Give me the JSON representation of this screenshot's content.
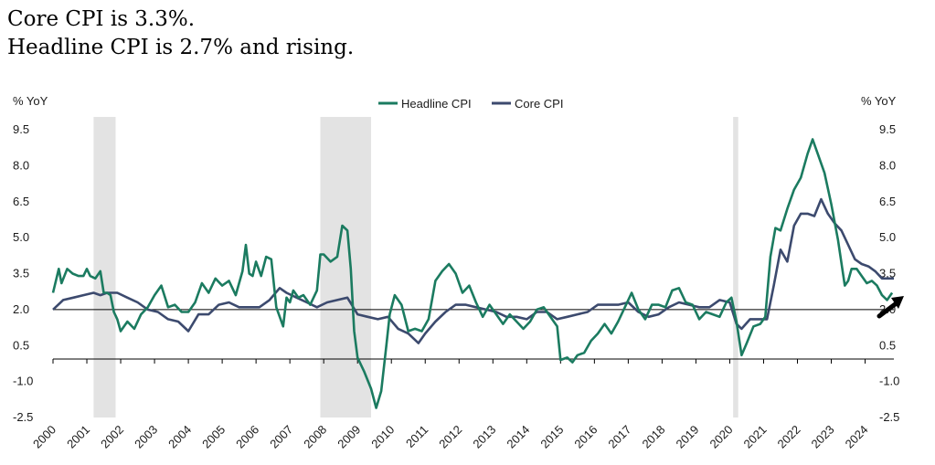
{
  "headline": {
    "line1": "Core CPI is 3.3%.",
    "line2": "Headline CPI is 2.7% and rising."
  },
  "chart_data": {
    "type": "line",
    "y_label_left": "% YoY",
    "y_label_right": "% YoY",
    "ylim": [
      -2.5,
      9.5
    ],
    "y_ticks": [
      "9.5",
      "8.0",
      "6.5",
      "5.0",
      "3.5",
      "2.0",
      "0.5",
      "-1.0",
      "-2.5"
    ],
    "x_ticks": [
      "2000",
      "2001",
      "2002",
      "2003",
      "2004",
      "2005",
      "2006",
      "2007",
      "2008",
      "2009",
      "2010",
      "2011",
      "2012",
      "2013",
      "2014",
      "2015",
      "2016",
      "2017",
      "2018",
      "2019",
      "2020",
      "2021",
      "2022",
      "2023",
      "2024"
    ],
    "xlim": [
      2000.0,
      2024.85
    ],
    "reference_line": 2.0,
    "recessions": [
      [
        2001.2,
        2001.85
      ],
      [
        2007.9,
        2009.4
      ],
      [
        2020.1,
        2020.25
      ]
    ],
    "legend_position": "top-center",
    "colors": {
      "headline": "#1b7b60",
      "core": "#3c4a6e",
      "recession": "#e3e3e3",
      "reference": "#000000"
    },
    "series": [
      {
        "name": "Headline CPI",
        "x": [
          2000.0,
          2000.17,
          2000.25,
          2000.42,
          2000.58,
          2000.75,
          2000.9,
          2001.0,
          2001.1,
          2001.25,
          2001.4,
          2001.5,
          2001.6,
          2001.7,
          2001.8,
          2001.9,
          2002.0,
          2002.2,
          2002.4,
          2002.6,
          2002.8,
          2003.0,
          2003.2,
          2003.4,
          2003.6,
          2003.8,
          2004.0,
          2004.2,
          2004.4,
          2004.6,
          2004.8,
          2005.0,
          2005.2,
          2005.4,
          2005.6,
          2005.7,
          2005.8,
          2005.9,
          2006.0,
          2006.15,
          2006.3,
          2006.45,
          2006.6,
          2006.8,
          2006.9,
          2007.0,
          2007.1,
          2007.25,
          2007.4,
          2007.6,
          2007.8,
          2007.9,
          2008.0,
          2008.2,
          2008.4,
          2008.55,
          2008.7,
          2008.8,
          2008.9,
          2009.0,
          2009.2,
          2009.4,
          2009.55,
          2009.7,
          2009.85,
          2009.95,
          2010.1,
          2010.3,
          2010.5,
          2010.7,
          2010.9,
          2011.1,
          2011.3,
          2011.5,
          2011.7,
          2011.9,
          2012.1,
          2012.3,
          2012.5,
          2012.7,
          2012.9,
          2013.1,
          2013.3,
          2013.5,
          2013.7,
          2013.9,
          2014.1,
          2014.3,
          2014.5,
          2014.7,
          2014.9,
          2015.0,
          2015.2,
          2015.35,
          2015.5,
          2015.7,
          2015.9,
          2016.1,
          2016.3,
          2016.5,
          2016.7,
          2016.9,
          2017.1,
          2017.3,
          2017.5,
          2017.7,
          2017.9,
          2018.1,
          2018.3,
          2018.5,
          2018.7,
          2018.9,
          2019.1,
          2019.3,
          2019.5,
          2019.7,
          2019.9,
          2020.05,
          2020.2,
          2020.35,
          2020.5,
          2020.7,
          2020.9,
          2021.05,
          2021.2,
          2021.35,
          2021.5,
          2021.7,
          2021.9,
          2022.1,
          2022.3,
          2022.45,
          2022.6,
          2022.8,
          2023.0,
          2023.2,
          2023.4,
          2023.5,
          2023.6,
          2023.75,
          2023.9,
          2024.05,
          2024.2,
          2024.35,
          2024.5,
          2024.65,
          2024.8
        ],
        "values": [
          2.7,
          3.7,
          3.1,
          3.7,
          3.5,
          3.4,
          3.4,
          3.7,
          3.4,
          3.3,
          3.6,
          2.7,
          2.7,
          2.6,
          1.9,
          1.6,
          1.1,
          1.5,
          1.2,
          1.8,
          2.1,
          2.6,
          3.0,
          2.1,
          2.2,
          1.9,
          1.9,
          2.3,
          3.1,
          2.7,
          3.3,
          3.0,
          3.2,
          2.6,
          3.6,
          4.7,
          3.5,
          3.4,
          4.0,
          3.4,
          4.2,
          4.1,
          2.1,
          1.3,
          2.5,
          2.3,
          2.8,
          2.5,
          2.6,
          2.2,
          2.8,
          4.3,
          4.3,
          4.0,
          4.2,
          5.5,
          5.3,
          3.7,
          1.1,
          0.0,
          -0.6,
          -1.3,
          -2.1,
          -1.4,
          0.5,
          1.8,
          2.6,
          2.2,
          1.1,
          1.2,
          1.1,
          1.6,
          3.2,
          3.6,
          3.9,
          3.5,
          2.7,
          3.0,
          2.3,
          1.7,
          2.2,
          1.8,
          1.4,
          1.8,
          1.5,
          1.2,
          1.5,
          2.0,
          2.1,
          1.7,
          1.3,
          -0.1,
          0.0,
          -0.2,
          0.1,
          0.2,
          0.7,
          1.0,
          1.4,
          1.0,
          1.5,
          2.1,
          2.7,
          2.0,
          1.6,
          2.2,
          2.2,
          2.1,
          2.8,
          2.9,
          2.3,
          2.2,
          1.6,
          1.9,
          1.8,
          1.7,
          2.3,
          2.5,
          1.5,
          0.1,
          0.6,
          1.3,
          1.4,
          1.7,
          4.2,
          5.4,
          5.3,
          6.2,
          7.0,
          7.5,
          8.5,
          9.1,
          8.5,
          7.7,
          6.4,
          4.9,
          3.0,
          3.2,
          3.7,
          3.7,
          3.4,
          3.1,
          3.2,
          3.0,
          2.6,
          2.4,
          2.7
        ]
      },
      {
        "name": "Core CPI",
        "x": [
          2000.0,
          2000.3,
          2000.6,
          2000.9,
          2001.2,
          2001.4,
          2001.6,
          2001.9,
          2002.2,
          2002.5,
          2002.8,
          2003.1,
          2003.4,
          2003.7,
          2004.0,
          2004.3,
          2004.6,
          2004.9,
          2005.2,
          2005.5,
          2005.8,
          2006.1,
          2006.4,
          2006.7,
          2006.9,
          2007.2,
          2007.5,
          2007.8,
          2008.1,
          2008.4,
          2008.7,
          2009.0,
          2009.3,
          2009.6,
          2009.9,
          2010.2,
          2010.5,
          2010.8,
          2011.0,
          2011.3,
          2011.6,
          2011.9,
          2012.2,
          2012.5,
          2012.8,
          2013.1,
          2013.4,
          2013.7,
          2014.0,
          2014.3,
          2014.6,
          2014.9,
          2015.2,
          2015.5,
          2015.8,
          2016.1,
          2016.4,
          2016.7,
          2017.0,
          2017.3,
          2017.6,
          2017.9,
          2018.2,
          2018.5,
          2018.8,
          2019.1,
          2019.4,
          2019.7,
          2020.0,
          2020.2,
          2020.35,
          2020.6,
          2020.9,
          2021.1,
          2021.3,
          2021.5,
          2021.7,
          2021.9,
          2022.1,
          2022.3,
          2022.5,
          2022.7,
          2022.9,
          2023.1,
          2023.3,
          2023.5,
          2023.7,
          2023.9,
          2024.1,
          2024.3,
          2024.5,
          2024.7,
          2024.85
        ],
        "values": [
          2.0,
          2.4,
          2.5,
          2.6,
          2.7,
          2.6,
          2.7,
          2.7,
          2.5,
          2.3,
          2.0,
          1.9,
          1.6,
          1.5,
          1.1,
          1.8,
          1.8,
          2.2,
          2.3,
          2.1,
          2.1,
          2.1,
          2.4,
          2.9,
          2.7,
          2.5,
          2.3,
          2.1,
          2.3,
          2.4,
          2.5,
          1.8,
          1.7,
          1.6,
          1.7,
          1.2,
          1.0,
          0.6,
          1.0,
          1.5,
          1.9,
          2.2,
          2.2,
          2.1,
          2.0,
          1.9,
          1.7,
          1.7,
          1.6,
          1.9,
          1.9,
          1.6,
          1.7,
          1.8,
          1.9,
          2.2,
          2.2,
          2.2,
          2.3,
          1.9,
          1.7,
          1.8,
          2.1,
          2.3,
          2.2,
          2.1,
          2.1,
          2.4,
          2.3,
          1.4,
          1.2,
          1.6,
          1.6,
          1.6,
          3.0,
          4.5,
          4.0,
          5.5,
          6.0,
          6.0,
          5.9,
          6.6,
          6.0,
          5.6,
          5.3,
          4.7,
          4.1,
          3.9,
          3.8,
          3.6,
          3.3,
          3.3,
          3.3
        ]
      }
    ]
  }
}
